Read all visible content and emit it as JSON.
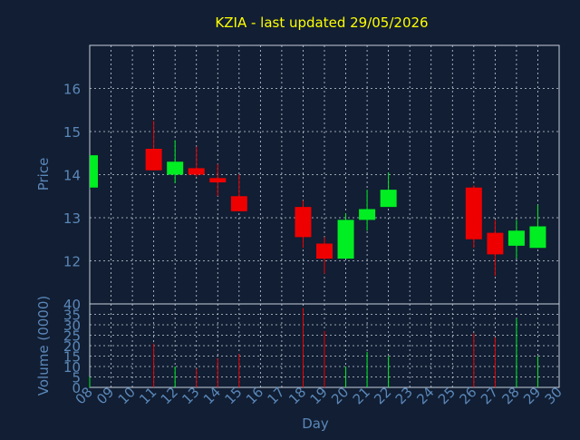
{
  "chart_data": [
    {
      "type": "candlestick",
      "title": "KZIA - last updated 29/05/2026",
      "ylabel": "Price",
      "ylim": [
        11,
        17
      ],
      "yticks": [
        12,
        13,
        14,
        15,
        16
      ],
      "grid": true,
      "x": [
        "08",
        "09",
        "10",
        "11",
        "12",
        "13",
        "14",
        "15",
        "16",
        "17",
        "18",
        "19",
        "20",
        "21",
        "22",
        "23",
        "24",
        "25",
        "26",
        "27",
        "28",
        "29",
        "30"
      ],
      "candles": [
        {
          "day": "08",
          "open": 13.7,
          "high": 14.45,
          "low": 13.65,
          "close": 14.45,
          "direction": "up"
        },
        {
          "day": "11",
          "open": 14.6,
          "high": 15.25,
          "low": 14.1,
          "close": 14.1,
          "direction": "down"
        },
        {
          "day": "12",
          "open": 14.0,
          "high": 14.8,
          "low": 13.8,
          "close": 14.3,
          "direction": "up"
        },
        {
          "day": "13",
          "open": 14.15,
          "high": 14.65,
          "low": 13.95,
          "close": 14.0,
          "direction": "down"
        },
        {
          "day": "14",
          "open": 13.92,
          "high": 14.25,
          "low": 13.5,
          "close": 13.82,
          "direction": "down"
        },
        {
          "day": "15",
          "open": 13.5,
          "high": 14.0,
          "low": 13.15,
          "close": 13.15,
          "direction": "down"
        },
        {
          "day": "18",
          "open": 13.25,
          "high": 13.4,
          "low": 12.3,
          "close": 12.55,
          "direction": "down"
        },
        {
          "day": "19",
          "open": 12.4,
          "high": 12.55,
          "low": 11.7,
          "close": 12.05,
          "direction": "down"
        },
        {
          "day": "20",
          "open": 12.05,
          "high": 13.1,
          "low": 12.05,
          "close": 12.95,
          "direction": "up"
        },
        {
          "day": "21",
          "open": 12.95,
          "high": 13.65,
          "low": 12.7,
          "close": 13.2,
          "direction": "up"
        },
        {
          "day": "22",
          "open": 13.25,
          "high": 14.05,
          "low": 13.25,
          "close": 13.65,
          "direction": "up"
        },
        {
          "day": "26",
          "open": 13.7,
          "high": 13.75,
          "low": 12.3,
          "close": 12.5,
          "direction": "down"
        },
        {
          "day": "27",
          "open": 12.65,
          "high": 12.95,
          "low": 11.65,
          "close": 12.15,
          "direction": "down"
        },
        {
          "day": "28",
          "open": 12.35,
          "high": 12.95,
          "low": 12.05,
          "close": 12.7,
          "direction": "up"
        },
        {
          "day": "29",
          "open": 12.3,
          "high": 13.3,
          "low": 12.3,
          "close": 12.8,
          "direction": "up"
        }
      ]
    },
    {
      "type": "bar",
      "ylabel": "Volume (0000)",
      "xlabel": "Day",
      "ylim": [
        0,
        40
      ],
      "yticks": [
        0,
        5,
        10,
        15,
        20,
        25,
        30,
        35,
        40
      ],
      "categories": [
        "08",
        "09",
        "10",
        "11",
        "12",
        "13",
        "14",
        "15",
        "16",
        "17",
        "18",
        "19",
        "20",
        "21",
        "22",
        "23",
        "24",
        "25",
        "26",
        "27",
        "28",
        "29",
        "30"
      ],
      "bars": [
        {
          "day": "08",
          "value": 5,
          "direction": "up"
        },
        {
          "day": "11",
          "value": 21,
          "direction": "down"
        },
        {
          "day": "12",
          "value": 10,
          "direction": "up"
        },
        {
          "day": "13",
          "value": 9,
          "direction": "down"
        },
        {
          "day": "14",
          "value": 14,
          "direction": "down"
        },
        {
          "day": "15",
          "value": 16,
          "direction": "down"
        },
        {
          "day": "18",
          "value": 38,
          "direction": "down"
        },
        {
          "day": "19",
          "value": 27,
          "direction": "down"
        },
        {
          "day": "20",
          "value": 10,
          "direction": "up"
        },
        {
          "day": "21",
          "value": 17,
          "direction": "up"
        },
        {
          "day": "22",
          "value": 15,
          "direction": "up"
        },
        {
          "day": "26",
          "value": 26,
          "direction": "down"
        },
        {
          "day": "27",
          "value": 24,
          "direction": "down"
        },
        {
          "day": "28",
          "value": 33,
          "direction": "up"
        },
        {
          "day": "29",
          "value": 15,
          "direction": "up"
        }
      ]
    }
  ],
  "colors": {
    "background": "#111e33",
    "title": "#ffff00",
    "axis_text": "#5b87b8",
    "grid": "#c8d0dc",
    "up": "#00ee22",
    "down": "#ee0000",
    "frame": "#c8d0dc"
  }
}
